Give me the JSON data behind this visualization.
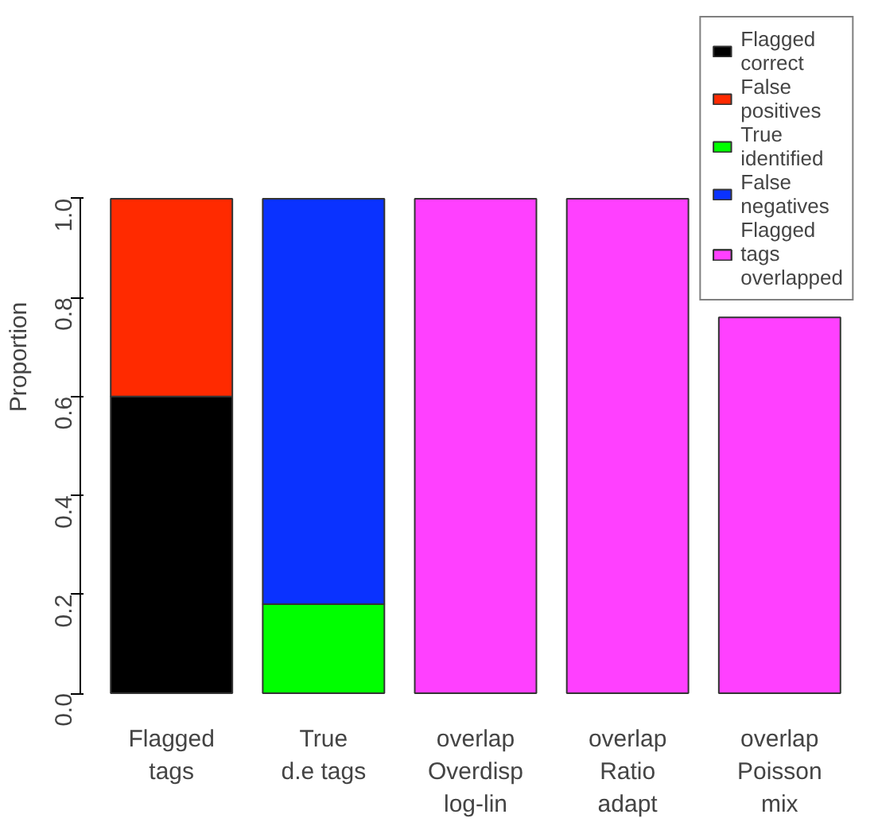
{
  "chart_data": {
    "type": "bar",
    "stacked": true,
    "ylabel": "Proportion",
    "categories": [
      "Flagged\ntags",
      "True\nd.e tags",
      "overlap\nOverdisp\nlog-lin",
      "overlap\nRatio\nadapt",
      "overlap\nPoisson\nmix"
    ],
    "series": [
      {
        "name": "Flagged correct",
        "color": "#000000",
        "values": [
          0.6,
          null,
          null,
          null,
          null
        ]
      },
      {
        "name": "False positives",
        "color": "#ff2a00",
        "values": [
          0.4,
          null,
          null,
          null,
          null
        ]
      },
      {
        "name": "True identified",
        "color": "#00ff00",
        "values": [
          null,
          0.18,
          null,
          null,
          null
        ]
      },
      {
        "name": "False negatives",
        "color": "#0a32ff",
        "values": [
          null,
          0.82,
          null,
          null,
          null
        ]
      },
      {
        "name": "Flagged tags overlapped",
        "color": "#ff40ff",
        "values": [
          null,
          null,
          1.0,
          1.0,
          0.76
        ]
      }
    ],
    "ylim": [
      0,
      1
    ],
    "yticks": [
      {
        "value": 0,
        "label": "0.0"
      },
      {
        "value": 0.2,
        "label": "0.2"
      },
      {
        "value": 0.4,
        "label": "0.4"
      },
      {
        "value": 0.6,
        "label": "0.6"
      },
      {
        "value": 0.8,
        "label": "0.8"
      },
      {
        "value": 1,
        "label": "1.0"
      }
    ],
    "legend": "top right"
  }
}
